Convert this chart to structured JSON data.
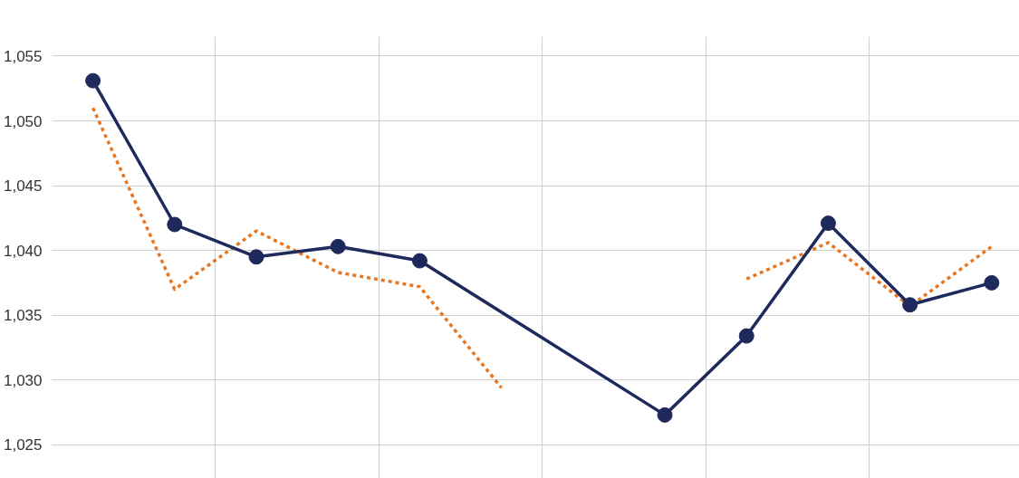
{
  "chart_data": {
    "type": "line",
    "categories": [
      null,
      null,
      null,
      null,
      null,
      null,
      null,
      null,
      null,
      null,
      null,
      null
    ],
    "series": [
      {
        "color": "#e87722",
        "line_style": "dashed",
        "marker": "none",
        "values": [
          1051.0,
          1037.0,
          1041.5,
          1038.3,
          1037.2,
          1029.4,
          null,
          null,
          1037.8,
          1040.6,
          1035.7,
          1040.3
        ]
      },
      {
        "color": "#1f2a5c",
        "line_style": "solid",
        "marker": "circle",
        "values": [
          1053.1,
          1042.0,
          1039.5,
          1040.3,
          1039.2,
          null,
          null,
          1027.3,
          1033.4,
          1042.1,
          1035.8,
          1037.5
        ]
      }
    ],
    "ylim": [
      1022.4,
      1056.5
    ],
    "yticks": [
      {
        "value": 1025,
        "label": "1,025"
      },
      {
        "value": 1030,
        "label": "1,030"
      },
      {
        "value": 1035,
        "label": "1,035"
      },
      {
        "value": 1040,
        "label": "1,040"
      },
      {
        "value": 1045,
        "label": "1,045"
      },
      {
        "value": 1050,
        "label": "1,050"
      },
      {
        "value": 1055,
        "label": "1,055"
      }
    ],
    "tick_labels": "y",
    "grid": true
  }
}
